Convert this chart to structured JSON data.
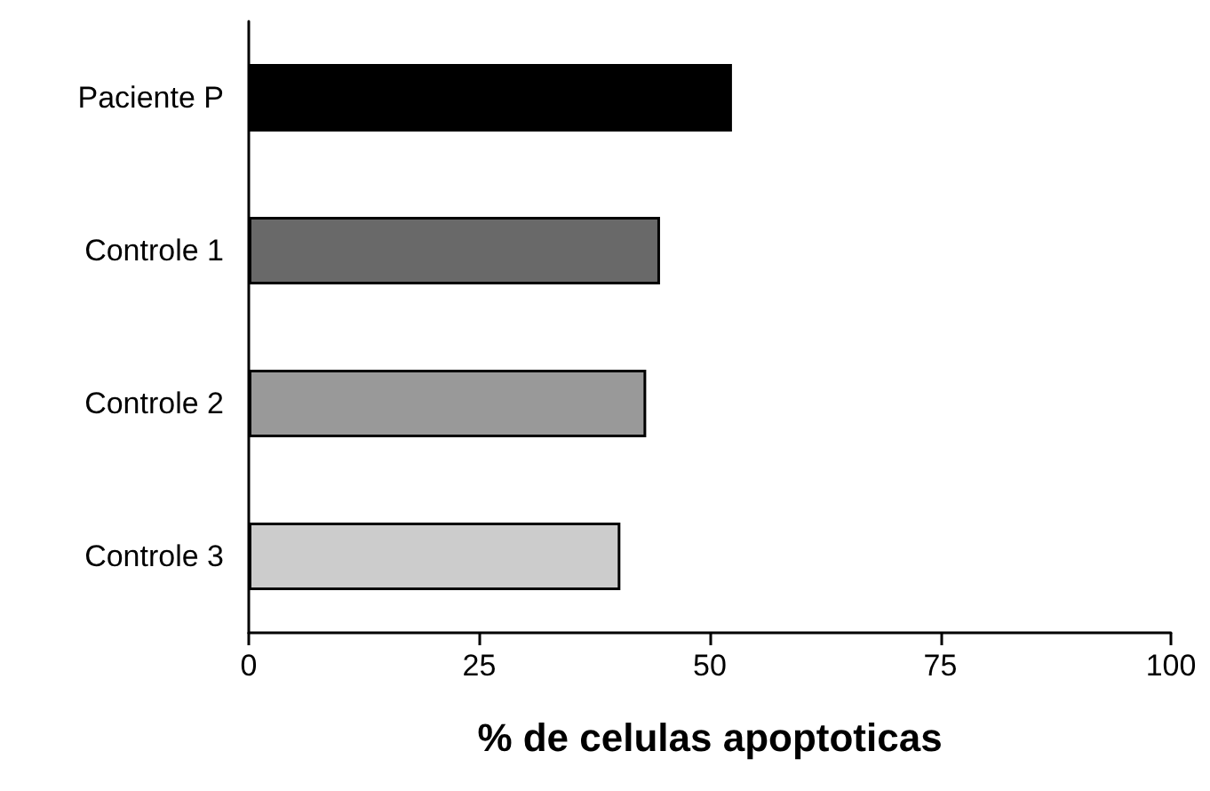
{
  "chart_data": {
    "type": "bar",
    "orientation": "horizontal",
    "xlabel": "% de celulas apoptoticas",
    "categories": [
      "Paciente P",
      "Controle 1",
      "Controle 2",
      "Controle 3"
    ],
    "values": [
      52.4,
      44.6,
      43.1,
      40.3
    ],
    "colors": [
      "#000000",
      "#696969",
      "#999999",
      "#cccccc"
    ],
    "xlim": [
      0,
      100
    ],
    "xticks": [
      0,
      25,
      50,
      75,
      100
    ],
    "grid": false
  }
}
